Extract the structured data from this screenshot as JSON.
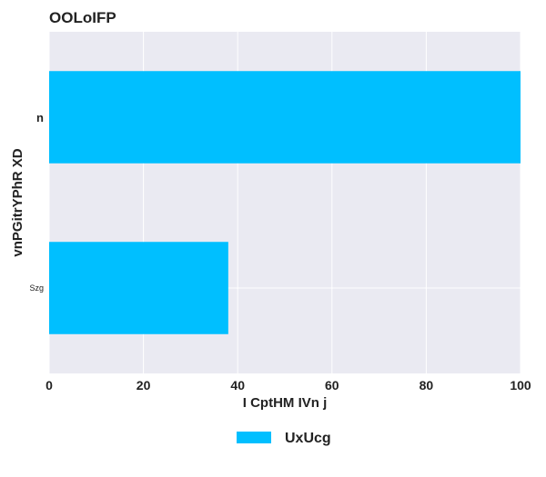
{
  "chart_data": {
    "type": "bar",
    "orientation": "horizontal",
    "title": "OOLoIFP",
    "xlabel": "I CptHM IVn j",
    "ylabel": "vnPGitrYPhR XD",
    "categories": [
      "n",
      "Szg"
    ],
    "series": [
      {
        "name": "UxUcg",
        "values": [
          100,
          38
        ],
        "color": "#00BFFF"
      }
    ],
    "xlim": [
      0,
      100
    ],
    "xticks": [
      0,
      20,
      40,
      60,
      80,
      100
    ],
    "grid": true,
    "legend_position": "bottom-center",
    "colors": {
      "plot_background": "#EAEAF2",
      "grid": "#FFFFFF",
      "bar": "#00BFFF"
    }
  }
}
